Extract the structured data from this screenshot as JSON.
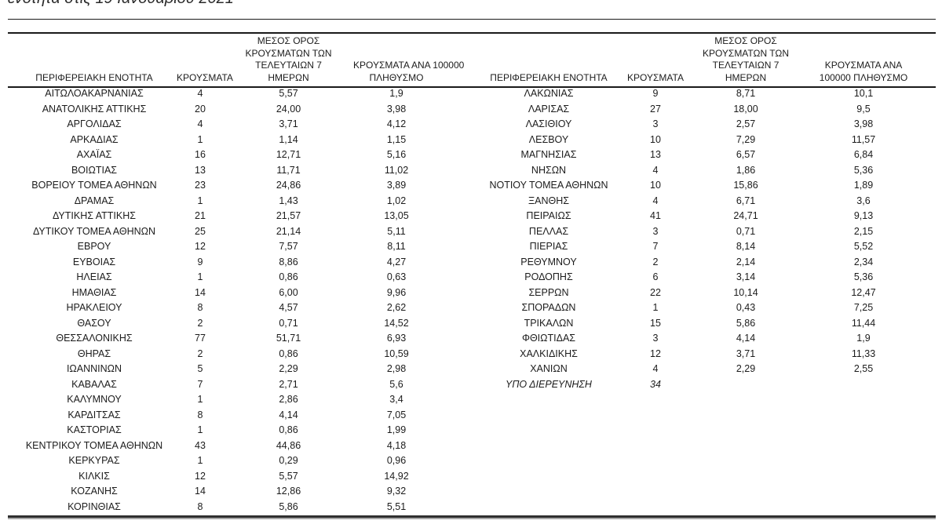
{
  "page": {
    "caption_fragment": "ενότητα στις 19 Ιανουαρίου 2021",
    "ink_color": "#1c1c1c"
  },
  "table_left": {
    "headers": [
      "ΠΕΡΙΦΕΡΕΙΑΚΗ ΕΝΟΤΗΤΑ",
      "ΚΡΟΥΣΜΑΤΑ",
      "ΜΕΣΟΣ ΟΡΟΣ\nΚΡΟΥΣΜΑΤΩΝ ΤΩΝ\nΤΕΛΕΥΤΑΙΩΝ 7\nΗΜΕΡΩΝ",
      "ΚΡΟΥΣΜΑΤΑ ΑΝΑ 100000\nΠΛΗΘΥΣΜΟ"
    ],
    "rows": [
      [
        "ΑΙΤΩΛΟΑΚΑΡΝΑΝΙΑΣ",
        "4",
        "5,57",
        "1,9"
      ],
      [
        "ΑΝΑΤΟΛΙΚΗΣ ΑΤΤΙΚΗΣ",
        "20",
        "24,00",
        "3,98"
      ],
      [
        "ΑΡΓΟΛΙΔΑΣ",
        "4",
        "3,71",
        "4,12"
      ],
      [
        "ΑΡΚΑΔΙΑΣ",
        "1",
        "1,14",
        "1,15"
      ],
      [
        "ΑΧΑΪΑΣ",
        "16",
        "12,71",
        "5,16"
      ],
      [
        "ΒΟΙΩΤΙΑΣ",
        "13",
        "11,71",
        "11,02"
      ],
      [
        "ΒΟΡΕΙΟΥ ΤΟΜΕΑ ΑΘΗΝΩΝ",
        "23",
        "24,86",
        "3,89"
      ],
      [
        "ΔΡΑΜΑΣ",
        "1",
        "1,43",
        "1,02"
      ],
      [
        "ΔΥΤΙΚΗΣ ΑΤΤΙΚΗΣ",
        "21",
        "21,57",
        "13,05"
      ],
      [
        "ΔΥΤΙΚΟΥ ΤΟΜΕΑ ΑΘΗΝΩΝ",
        "25",
        "21,14",
        "5,11"
      ],
      [
        "ΕΒΡΟΥ",
        "12",
        "7,57",
        "8,11"
      ],
      [
        "ΕΥΒΟΙΑΣ",
        "9",
        "8,86",
        "4,27"
      ],
      [
        "ΗΛΕΙΑΣ",
        "1",
        "0,86",
        "0,63"
      ],
      [
        "ΗΜΑΘΙΑΣ",
        "14",
        "6,00",
        "9,96"
      ],
      [
        "ΗΡΑΚΛΕΙΟΥ",
        "8",
        "4,57",
        "2,62"
      ],
      [
        "ΘΑΣΟΥ",
        "2",
        "0,71",
        "14,52"
      ],
      [
        "ΘΕΣΣΑΛΟΝΙΚΗΣ",
        "77",
        "51,71",
        "6,93"
      ],
      [
        "ΘΗΡΑΣ",
        "2",
        "0,86",
        "10,59"
      ],
      [
        "ΙΩΑΝΝΙΝΩΝ",
        "5",
        "2,29",
        "2,98"
      ],
      [
        "ΚΑΒΑΛΑΣ",
        "7",
        "2,71",
        "5,6"
      ],
      [
        "ΚΑΛΥΜΝΟΥ",
        "1",
        "2,86",
        "3,4"
      ],
      [
        "ΚΑΡΔΙΤΣΑΣ",
        "8",
        "4,14",
        "7,05"
      ],
      [
        "ΚΑΣΤΟΡΙΑΣ",
        "1",
        "0,86",
        "1,99"
      ],
      [
        "ΚΕΝΤΡΙΚΟΥ ΤΟΜΕΑ ΑΘΗΝΩΝ",
        "43",
        "44,86",
        "4,18"
      ],
      [
        "ΚΕΡΚΥΡΑΣ",
        "1",
        "0,29",
        "0,96"
      ],
      [
        "ΚΙΛΚΙΣ",
        "12",
        "5,57",
        "14,92"
      ],
      [
        "ΚΟΖΑΝΗΣ",
        "14",
        "12,86",
        "9,32"
      ],
      [
        "ΚΟΡΙΝΘΙΑΣ",
        "8",
        "5,86",
        "5,51"
      ]
    ],
    "italic_rows": []
  },
  "table_right": {
    "headers": [
      "ΠΕΡΙΦΕΡΕΙΑΚΗ ΕΝΟΤΗΤΑ",
      "ΚΡΟΥΣΜΑΤΑ",
      "ΜΕΣΟΣ ΟΡΟΣ\nΚΡΟΥΣΜΑΤΩΝ ΤΩΝ\nΤΕΛΕΥΤΑΙΩΝ 7\nΗΜΕΡΩΝ",
      "ΚΡΟΥΣΜΑΤΑ ΑΝΑ\n100000 ΠΛΗΘΥΣΜΟ"
    ],
    "rows": [
      [
        "ΛΑΚΩΝΙΑΣ",
        "9",
        "8,71",
        "10,1"
      ],
      [
        "ΛΑΡΙΣΑΣ",
        "27",
        "18,00",
        "9,5"
      ],
      [
        "ΛΑΣΙΘΙΟΥ",
        "3",
        "2,57",
        "3,98"
      ],
      [
        "ΛΕΣΒΟΥ",
        "10",
        "7,29",
        "11,57"
      ],
      [
        "ΜΑΓΝΗΣΙΑΣ",
        "13",
        "6,57",
        "6,84"
      ],
      [
        "ΝΗΣΩΝ",
        "4",
        "1,86",
        "5,36"
      ],
      [
        "ΝΟΤΙΟΥ ΤΟΜΕΑ ΑΘΗΝΩΝ",
        "10",
        "15,86",
        "1,89"
      ],
      [
        "ΞΑΝΘΗΣ",
        "4",
        "6,71",
        "3,6"
      ],
      [
        "ΠΕΙΡΑΙΩΣ",
        "41",
        "24,71",
        "9,13"
      ],
      [
        "ΠΕΛΛΑΣ",
        "3",
        "0,71",
        "2,15"
      ],
      [
        "ΠΙΕΡΙΑΣ",
        "7",
        "8,14",
        "5,52"
      ],
      [
        "ΡΕΘΥΜΝΟΥ",
        "2",
        "2,14",
        "2,34"
      ],
      [
        "ΡΟΔΟΠΗΣ",
        "6",
        "3,14",
        "5,36"
      ],
      [
        "ΣΕΡΡΩΝ",
        "22",
        "10,14",
        "12,47"
      ],
      [
        "ΣΠΟΡΑΔΩΝ",
        "1",
        "0,43",
        "7,25"
      ],
      [
        "ΤΡΙΚΑΛΩΝ",
        "15",
        "5,86",
        "11,44"
      ],
      [
        "ΦΘΙΩΤΙΔΑΣ",
        "3",
        "4,14",
        "1,9"
      ],
      [
        "ΧΑΛΚΙΔΙΚΗΣ",
        "12",
        "3,71",
        "11,33"
      ],
      [
        "ΧΑΝΙΩΝ",
        "4",
        "2,29",
        "2,55"
      ],
      [
        "ΥΠΟ ΔΙΕΡΕΥΝΗΣΗ",
        "34",
        "",
        ""
      ]
    ],
    "italic_rows": [
      19
    ]
  }
}
